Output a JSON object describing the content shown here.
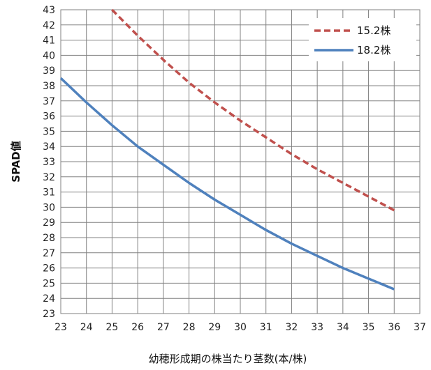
{
  "chart_data": {
    "type": "line",
    "xlabel": "幼穂形成期の株当たり茎数(本/株)",
    "ylabel": "SPAD値",
    "xlim": [
      23,
      37
    ],
    "ylim": [
      23,
      43
    ],
    "xticks": [
      23,
      24,
      25,
      26,
      27,
      28,
      29,
      30,
      31,
      32,
      33,
      34,
      35,
      36,
      37
    ],
    "yticks": [
      23,
      24,
      25,
      26,
      27,
      28,
      29,
      30,
      31,
      32,
      33,
      34,
      35,
      36,
      37,
      38,
      39,
      40,
      41,
      42,
      43
    ],
    "grid": true,
    "legend_position": "top-right",
    "series": [
      {
        "name": "15.2株",
        "color": "#c0504d",
        "dash": "dashed",
        "x": [
          25,
          26,
          27,
          28,
          29,
          30,
          31,
          32,
          33,
          34,
          35,
          36
        ],
        "y": [
          43.0,
          41.3,
          39.7,
          38.2,
          36.9,
          35.7,
          34.6,
          33.5,
          32.5,
          31.6,
          30.7,
          29.8
        ]
      },
      {
        "name": "18.2株",
        "color": "#4f81bd",
        "dash": "solid",
        "x": [
          23,
          24,
          25,
          26,
          27,
          28,
          29,
          30,
          31,
          32,
          33,
          34,
          35,
          36
        ],
        "y": [
          38.5,
          36.9,
          35.4,
          34.0,
          32.8,
          31.6,
          30.5,
          29.5,
          28.5,
          27.6,
          26.8,
          26.0,
          25.3,
          24.6
        ]
      }
    ]
  }
}
